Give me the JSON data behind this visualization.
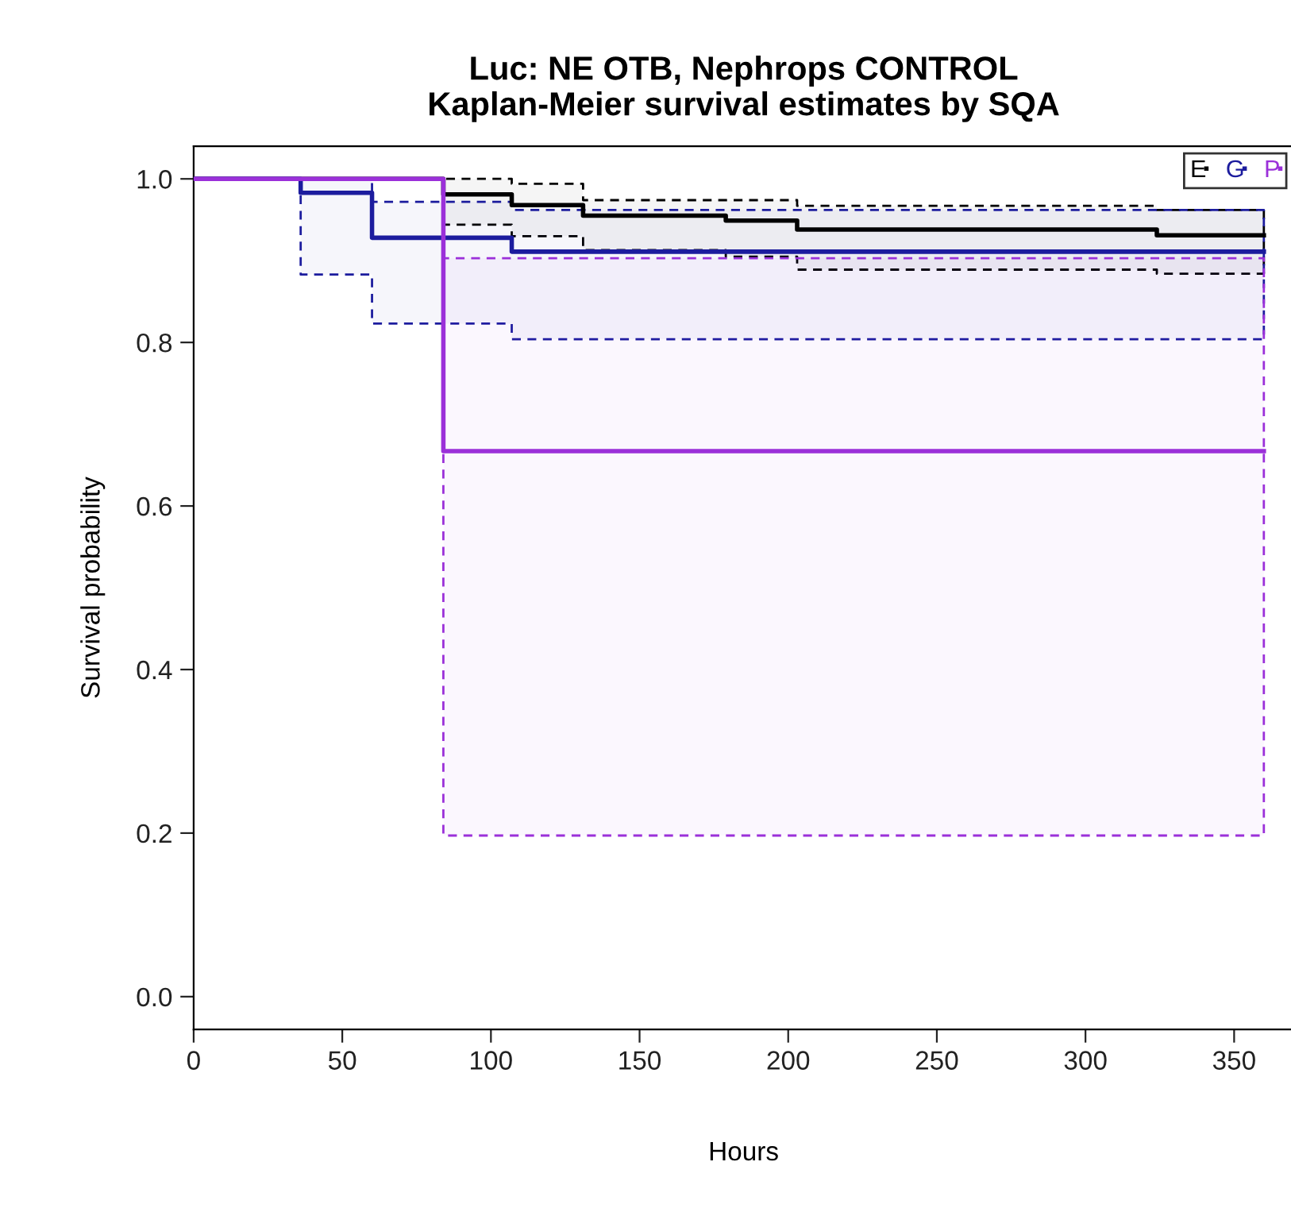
{
  "chart_data": {
    "type": "step",
    "title": "Luc: NE OTB, Nephrops CONTROL\nKaplan-Meier survival estimates by SQA",
    "xlabel": "Hours",
    "ylabel": "Survival probability",
    "xlim": [
      0,
      370
    ],
    "ylim": [
      -0.04,
      1.04
    ],
    "xticks": [
      0,
      50,
      100,
      150,
      200,
      250,
      300,
      350
    ],
    "yticks": [
      {
        "value": 0,
        "label": "0.0"
      },
      {
        "value": 0.2,
        "label": "0.2"
      },
      {
        "value": 0.4,
        "label": "0.4"
      },
      {
        "value": 0.6,
        "label": "0.6"
      },
      {
        "value": 0.8,
        "label": "0.8"
      },
      {
        "value": 1,
        "label": "1.0"
      }
    ],
    "grid": false,
    "legend": "top right",
    "line_style": "solid",
    "series": [
      {
        "name": "E",
        "color": "#000000",
        "x": [
          0,
          84,
          107,
          131,
          179,
          203,
          324,
          360
        ],
        "values": [
          1.0,
          0.981,
          0.968,
          0.955,
          0.949,
          0.938,
          0.931,
          0.931
        ],
        "lower": [
          1.0,
          0.944,
          0.93,
          0.913,
          0.905,
          0.889,
          0.884,
          0.884
        ],
        "upper": [
          1.0,
          1.0,
          0.994,
          0.974,
          0.974,
          0.967,
          0.962,
          0.962
        ]
      },
      {
        "name": "G",
        "color": "#1c1c9e",
        "x": [
          0,
          36,
          60,
          107,
          360
        ],
        "values": [
          1.0,
          0.983,
          0.928,
          0.911,
          0.911
        ],
        "lower": [
          1.0,
          0.883,
          0.823,
          0.804,
          0.804
        ],
        "upper": [
          1.0,
          1.0,
          0.972,
          0.962,
          0.962
        ]
      },
      {
        "name": "P",
        "color": "#9b30d9",
        "x": [
          0,
          84,
          360
        ],
        "values": [
          1.0,
          0.667,
          0.667
        ],
        "lower": [
          1.0,
          0.197,
          0.197
        ],
        "upper": [
          1.0,
          0.903,
          0.903
        ]
      }
    ]
  }
}
